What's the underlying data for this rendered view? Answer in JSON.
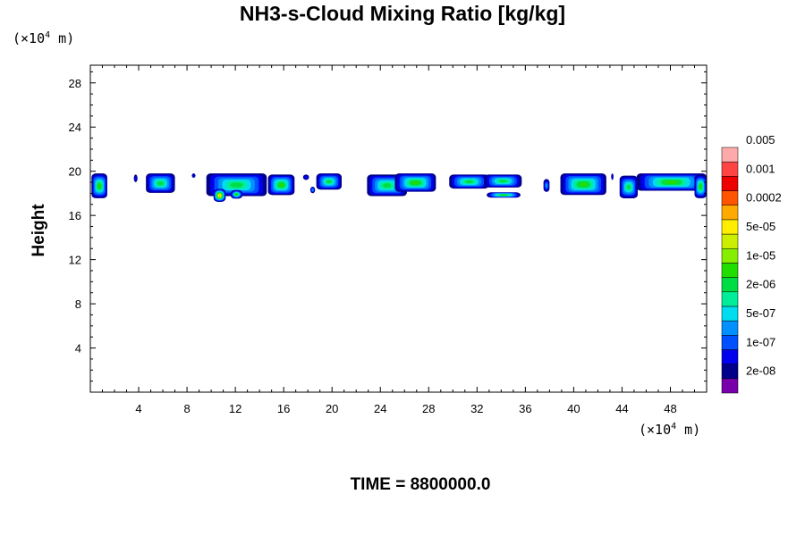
{
  "title": "NH3-s-Cloud Mixing Ratio [kg/kg]",
  "unit_label": {
    "prefix": "(×10",
    "exponent": "4",
    "suffix": " m)"
  },
  "time_label": "TIME = 8800000.0",
  "chart_data": {
    "type": "heatmap",
    "title": "NH3-s-Cloud Mixing Ratio [kg/kg]",
    "xlabel": "",
    "ylabel": "Height",
    "x_units": "×10^4 m",
    "y_units": "×10^4 m",
    "xlim": [
      0,
      51
    ],
    "ylim": [
      0,
      29.6
    ],
    "x_ticks": [
      4,
      8,
      12,
      16,
      20,
      24,
      28,
      32,
      36,
      40,
      44,
      48
    ],
    "y_ticks": [
      4,
      8,
      12,
      16,
      20,
      24,
      28
    ],
    "scale": "log",
    "grid": false,
    "colorbar": {
      "placement": "right",
      "colors": [
        "#7700aa",
        "#00008b",
        "#0000ee",
        "#0050ff",
        "#0090ff",
        "#00ddee",
        "#00ee99",
        "#00dd44",
        "#22dd00",
        "#88ee00",
        "#ccee00",
        "#ffee00",
        "#ffaa00",
        "#ff5500",
        "#ee0000",
        "#ff4444",
        "#ffaaaa"
      ],
      "labels": [
        "2e-08",
        "1e-07",
        "5e-07",
        "2e-06",
        "1e-05",
        "5e-05",
        "0.0002",
        "0.001",
        "0.005"
      ]
    },
    "cloud_base_level": 1,
    "cloud_cells": [
      {
        "x": [
          0.1,
          1.4
        ],
        "y": [
          17.5,
          19.8
        ],
        "peak": 8
      },
      {
        "x": [
          3.6,
          3.9
        ],
        "y": [
          19.0,
          19.7
        ],
        "peak": 2
      },
      {
        "x": [
          4.6,
          7.0
        ],
        "y": [
          18.0,
          19.8
        ],
        "peak": 7
      },
      {
        "x": [
          8.4,
          8.7
        ],
        "y": [
          19.4,
          19.8
        ],
        "peak": 2
      },
      {
        "x": [
          9.6,
          14.6
        ],
        "y": [
          17.7,
          19.8
        ],
        "peak": 7
      },
      {
        "x": [
          10.2,
          11.2
        ],
        "y": [
          17.2,
          18.4
        ],
        "peak": 12
      },
      {
        "x": [
          11.6,
          12.6
        ],
        "y": [
          17.5,
          18.3
        ],
        "peak": 8
      },
      {
        "x": [
          14.7,
          16.9
        ],
        "y": [
          17.8,
          19.7
        ],
        "peak": 8
      },
      {
        "x": [
          17.6,
          18.1
        ],
        "y": [
          19.2,
          19.7
        ],
        "peak": 2
      },
      {
        "x": [
          18.2,
          18.6
        ],
        "y": [
          18.0,
          18.6
        ],
        "peak": 4
      },
      {
        "x": [
          18.7,
          20.8
        ],
        "y": [
          18.3,
          19.8
        ],
        "peak": 7
      },
      {
        "x": [
          22.9,
          26.2
        ],
        "y": [
          17.7,
          19.7
        ],
        "peak": 7
      },
      {
        "x": [
          25.2,
          28.6
        ],
        "y": [
          18.1,
          19.8
        ],
        "peak": 8
      },
      {
        "x": [
          29.7,
          33.0
        ],
        "y": [
          18.4,
          19.7
        ],
        "peak": 7
      },
      {
        "x": [
          32.6,
          35.7
        ],
        "y": [
          18.5,
          19.7
        ],
        "peak": 7
      },
      {
        "x": [
          32.8,
          35.6
        ],
        "y": [
          17.6,
          18.1
        ],
        "peak": 8
      },
      {
        "x": [
          37.5,
          38.0
        ],
        "y": [
          18.1,
          19.3
        ],
        "peak": 4
      },
      {
        "x": [
          38.9,
          42.7
        ],
        "y": [
          17.8,
          19.8
        ],
        "peak": 8
      },
      {
        "x": [
          43.1,
          43.3
        ],
        "y": [
          19.2,
          19.8
        ],
        "peak": 2
      },
      {
        "x": [
          43.8,
          45.3
        ],
        "y": [
          17.5,
          19.6
        ],
        "peak": 7
      },
      {
        "x": [
          45.2,
          51.0
        ],
        "y": [
          18.2,
          19.8
        ],
        "peak": 8
      },
      {
        "x": [
          50.0,
          51.0
        ],
        "y": [
          17.5,
          19.7
        ],
        "peak": 8
      }
    ]
  }
}
